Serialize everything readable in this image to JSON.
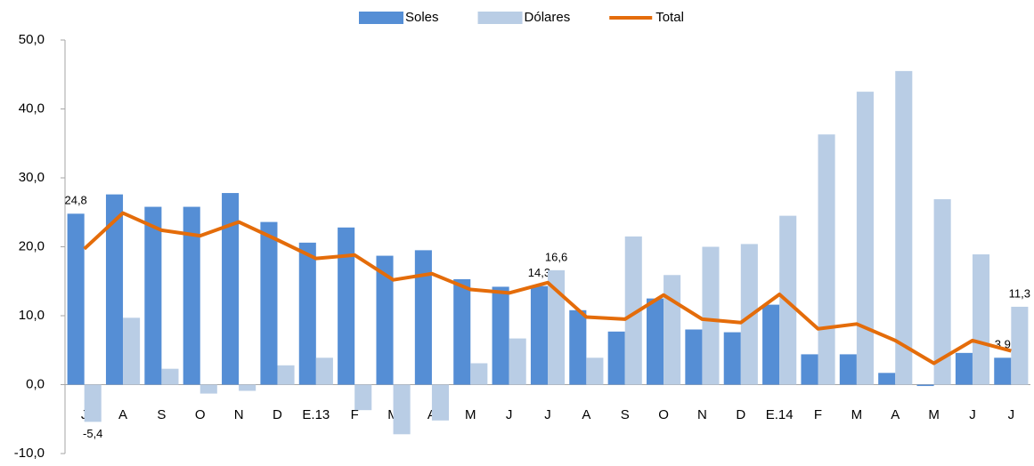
{
  "chart_data": {
    "type": "bar-line",
    "categories": [
      "J",
      "A",
      "S",
      "O",
      "N",
      "D",
      "E.13",
      "F",
      "M",
      "A",
      "M",
      "J",
      "J",
      "A",
      "S",
      "O",
      "N",
      "D",
      "E.14",
      "F",
      "M",
      "A",
      "M",
      "J",
      "J"
    ],
    "series": [
      {
        "name": "Soles",
        "type": "bar",
        "color": "#558ed5",
        "values": [
          24.8,
          27.6,
          25.8,
          25.8,
          27.8,
          23.6,
          20.6,
          22.8,
          18.7,
          19.5,
          15.3,
          14.2,
          14.3,
          10.8,
          7.7,
          12.5,
          8.0,
          7.6,
          11.6,
          4.4,
          4.4,
          1.7,
          -0.2,
          4.6,
          3.9
        ],
        "value_labels": [
          "24,8",
          null,
          null,
          null,
          null,
          null,
          null,
          null,
          null,
          null,
          null,
          null,
          "14,3",
          null,
          null,
          null,
          null,
          null,
          null,
          null,
          null,
          null,
          null,
          null,
          "3,9"
        ]
      },
      {
        "name": "Dólares",
        "type": "bar",
        "color": "#b9cde5",
        "values": [
          -5.4,
          9.7,
          2.3,
          -1.3,
          -0.9,
          2.8,
          3.9,
          -3.7,
          -7.2,
          -5.2,
          3.1,
          6.7,
          16.6,
          3.9,
          21.5,
          15.9,
          20.0,
          20.4,
          24.5,
          36.3,
          42.5,
          45.5,
          26.9,
          18.9,
          11.3
        ],
        "value_labels": [
          "-5,4",
          null,
          null,
          null,
          null,
          null,
          null,
          null,
          null,
          null,
          null,
          null,
          "16,6",
          null,
          null,
          null,
          null,
          null,
          null,
          null,
          null,
          null,
          null,
          null,
          "11,3"
        ]
      },
      {
        "name": "Total",
        "type": "line",
        "color": "#e46c0a",
        "values": [
          19.7,
          24.9,
          22.4,
          21.6,
          23.6,
          21.0,
          18.3,
          18.8,
          15.2,
          16.1,
          13.8,
          13.3,
          14.8,
          9.8,
          9.5,
          13.0,
          9.5,
          9.0,
          13.1,
          8.1,
          8.8,
          6.4,
          3.1,
          6.4,
          4.9
        ]
      }
    ],
    "ylim": [
      -10,
      50
    ],
    "yticks": [
      {
        "value": -10,
        "label": "-10,0"
      },
      {
        "value": 0,
        "label": "0,0"
      },
      {
        "value": 10,
        "label": "10,0"
      },
      {
        "value": 20,
        "label": "20,0"
      },
      {
        "value": 30,
        "label": "30,0"
      },
      {
        "value": 40,
        "label": "40,0"
      },
      {
        "value": 50,
        "label": "50,0"
      }
    ],
    "grid": false,
    "legend": "top"
  }
}
